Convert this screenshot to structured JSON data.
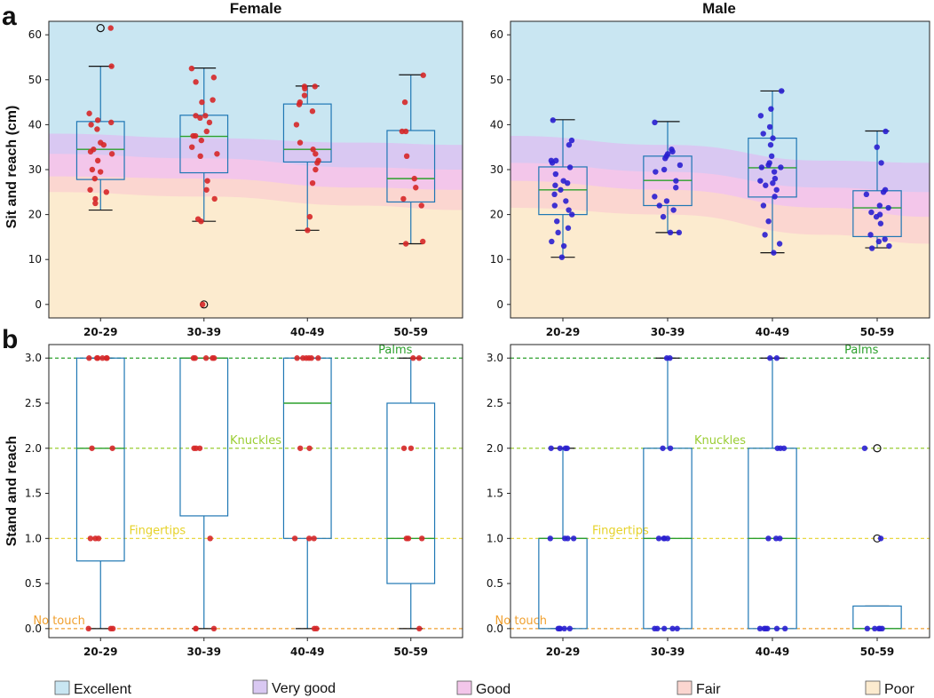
{
  "figure": {
    "panel_a_letter": "a",
    "panel_b_letter": "b",
    "col_titles": [
      "Female",
      "Male"
    ],
    "ylabel_a": "Sit and reach (cm)",
    "ylabel_b": "Stand and reach"
  },
  "colors": {
    "Excellent": "#c9e6f2",
    "Very good": "#d9c8f2",
    "Good": "#f3c6ea",
    "Fair": "#fbd6d0",
    "Poor": "#fcebcf",
    "box": "#1f77b4",
    "median": "#2ca02c",
    "female_points": "#d62728",
    "male_points": "#2a1fd0",
    "palms_line": "#2ca02c",
    "knuckles_line": "#9acd32",
    "fingertips_line": "#e6d22a",
    "notouch_line": "#f0a030"
  },
  "legend": [
    "Excellent",
    "Very good",
    "Good",
    "Fair",
    "Poor"
  ],
  "chart_data": [
    {
      "id": "a-female",
      "type": "box",
      "title": "Female",
      "ylabel": "Sit and reach (cm)",
      "ylim": [
        -3,
        63
      ],
      "yticks": [
        0,
        10,
        20,
        30,
        40,
        50,
        60
      ],
      "categories": [
        "20-29",
        "30-39",
        "40-49",
        "50-59"
      ],
      "boxes": [
        {
          "whislo": 21,
          "q1": 27.8,
          "med": 34.5,
          "q3": 40.7,
          "whishi": 53,
          "fliers": [
            61.5
          ]
        },
        {
          "whislo": 18.5,
          "q1": 29.3,
          "med": 37.4,
          "q3": 42.1,
          "whishi": 52.6,
          "fliers": [
            0
          ]
        },
        {
          "whislo": 16.5,
          "q1": 31.7,
          "med": 34.5,
          "q3": 44.6,
          "whishi": 48.6,
          "fliers": []
        },
        {
          "whislo": 13.5,
          "q1": 22.8,
          "med": 28,
          "q3": 38.7,
          "whishi": 51.1,
          "fliers": []
        }
      ],
      "points": [
        [
          61.5,
          53,
          42.5,
          41,
          40.5,
          40,
          39,
          36,
          35.5,
          34.5,
          34,
          33.5,
          32,
          30,
          29.5,
          28,
          25.5,
          25,
          23.5,
          22.5
        ],
        [
          52.5,
          50.5,
          49.5,
          45.5,
          45,
          42,
          42,
          41.5,
          40.5,
          38.5,
          37.5,
          37.5,
          36.5,
          35,
          33.5,
          33,
          27.5,
          25.5,
          23.5,
          19,
          18.5,
          0
        ],
        [
          48.5,
          48.5,
          48,
          46.5,
          45,
          44.5,
          43,
          40,
          36,
          34.5,
          33.5,
          32,
          31.5,
          30,
          27,
          19.5,
          16.5
        ],
        [
          51,
          45,
          38.5,
          38.5,
          33,
          28,
          26,
          23.5,
          22,
          14,
          13.5
        ]
      ],
      "zones": [
        {
          "x": [
            0.5,
            2.0,
            3.5,
            4.5
          ],
          "poor": [
            25,
            24,
            22,
            21
          ],
          "fair": [
            28.5,
            28,
            26,
            25.5
          ],
          "good": [
            33.5,
            32.5,
            30.5,
            30
          ],
          "verygood": [
            38,
            37,
            36,
            35.5
          ]
        }
      ]
    },
    {
      "id": "a-male",
      "type": "box",
      "title": "Male",
      "ylabel": "",
      "ylim": [
        -3,
        63
      ],
      "yticks": [
        0,
        10,
        20,
        30,
        40,
        50,
        60
      ],
      "categories": [
        "20-29",
        "30-39",
        "40-49",
        "50-59"
      ],
      "boxes": [
        {
          "whislo": 10.5,
          "q1": 20,
          "med": 25.5,
          "q3": 30.6,
          "whishi": 41.1,
          "fliers": []
        },
        {
          "whislo": 16,
          "q1": 22,
          "med": 27.6,
          "q3": 33,
          "whishi": 40.7,
          "fliers": []
        },
        {
          "whislo": 11.5,
          "q1": 23.9,
          "med": 30.4,
          "q3": 37,
          "whishi": 47.5,
          "fliers": []
        },
        {
          "whislo": 12.6,
          "q1": 15.1,
          "med": 21.5,
          "q3": 25.3,
          "whishi": 38.6,
          "fliers": []
        }
      ],
      "points": [
        [
          41,
          36.5,
          35.5,
          32,
          32,
          31.5,
          30.5,
          29,
          27.5,
          27,
          26.5,
          25.5,
          24.5,
          23,
          22,
          21,
          20,
          18.5,
          17,
          16,
          14,
          13,
          10.5
        ],
        [
          40.5,
          34.5,
          34,
          33.5,
          33,
          32.5,
          31,
          30,
          29.5,
          27.5,
          26,
          24,
          23,
          22,
          21,
          19.5,
          16,
          16
        ],
        [
          47.5,
          43.5,
          42,
          39.5,
          38,
          37,
          35.5,
          33,
          31.5,
          31,
          30.5,
          30.5,
          29.5,
          28,
          27.5,
          27,
          26.5,
          25.5,
          24,
          22,
          18.5,
          15.5,
          13.5,
          11.5
        ],
        [
          38.5,
          35,
          31.5,
          25.5,
          25,
          24.5,
          22,
          21.5,
          20.5,
          20,
          19.5,
          18,
          15.5,
          14.5,
          14,
          13,
          12.5
        ]
      ],
      "zones": [
        {
          "x": [
            0.5,
            2.0,
            3.5,
            4.5
          ],
          "poor": [
            21.5,
            20,
            15.5,
            13.5
          ],
          "fair": [
            27.5,
            25.5,
            21.5,
            19.5
          ],
          "good": [
            31.5,
            29.5,
            26,
            25
          ],
          "verygood": [
            37.5,
            35.5,
            32,
            31.5
          ]
        }
      ]
    },
    {
      "id": "b-female",
      "type": "box",
      "title": "",
      "ylabel": "Stand and reach",
      "ylim": [
        -0.1,
        3.15
      ],
      "yticks": [
        0.0,
        0.5,
        1.0,
        1.5,
        2.0,
        2.5,
        3.0
      ],
      "ytick_labels": [
        "0.0",
        "0.5",
        "1.0",
        "1.5",
        "2.0",
        "2.5",
        "3.0"
      ],
      "categories": [
        "20-29",
        "30-39",
        "40-49",
        "50-59"
      ],
      "boxes": [
        {
          "whislo": 0,
          "q1": 0.75,
          "med": 2.0,
          "q3": 3.0,
          "whishi": 3.0,
          "fliers": []
        },
        {
          "whislo": 0,
          "q1": 1.25,
          "med": 3.0,
          "q3": 3.0,
          "whishi": 3.0,
          "fliers": []
        },
        {
          "whislo": 0,
          "q1": 1.0,
          "med": 2.5,
          "q3": 3.0,
          "whishi": 3.0,
          "fliers": []
        },
        {
          "whislo": 0,
          "q1": 0.5,
          "med": 1.0,
          "q3": 2.5,
          "whishi": 3.0,
          "fliers": []
        }
      ],
      "points": [
        [
          3,
          3,
          3,
          3,
          3,
          3,
          2,
          2,
          1,
          1,
          1,
          0,
          0,
          0
        ],
        [
          3,
          3,
          3,
          3,
          3,
          2,
          2,
          2,
          1,
          0,
          0,
          0
        ],
        [
          3,
          3,
          3,
          3,
          3,
          3,
          2,
          2,
          1,
          1,
          1,
          0,
          0
        ],
        [
          3,
          3,
          2,
          2,
          1,
          1,
          1,
          0
        ]
      ],
      "reference_lines": [
        {
          "y": 3.0,
          "label": "Palms",
          "label_x": 3.85
        },
        {
          "y": 2.0,
          "label": "Knuckles",
          "label_x": 2.5
        },
        {
          "y": 1.0,
          "label": "Fingertips",
          "label_x": 1.55
        },
        {
          "y": 0.0,
          "label": "No touch",
          "label_x": 0.6
        }
      ]
    },
    {
      "id": "b-male",
      "type": "box",
      "title": "",
      "ylabel": "",
      "ylim": [
        -0.1,
        3.15
      ],
      "yticks": [
        0.0,
        0.5,
        1.0,
        1.5,
        2.0,
        2.5,
        3.0
      ],
      "ytick_labels": [
        "0.0",
        "0.5",
        "1.0",
        "1.5",
        "2.0",
        "2.5",
        "3.0"
      ],
      "categories": [
        "20-29",
        "30-39",
        "40-49",
        "50-59"
      ],
      "boxes": [
        {
          "whislo": 0,
          "q1": 0.0,
          "med": 1.0,
          "q3": 1.0,
          "whishi": 2.0,
          "fliers": []
        },
        {
          "whislo": 0,
          "q1": 0.0,
          "med": 1.0,
          "q3": 2.0,
          "whishi": 3.0,
          "fliers": []
        },
        {
          "whislo": 0,
          "q1": 0.0,
          "med": 1.0,
          "q3": 2.0,
          "whishi": 3.0,
          "fliers": []
        },
        {
          "whislo": 0,
          "q1": 0.0,
          "med": 0.0,
          "q3": 0.25,
          "whishi": 0.25,
          "fliers": [
            1.0,
            2.0
          ]
        }
      ],
      "points": [
        [
          2,
          2,
          2,
          2,
          1,
          1,
          1,
          1,
          0,
          0,
          0,
          0,
          0
        ],
        [
          3,
          3,
          2,
          2,
          1,
          1,
          1,
          1,
          0,
          0,
          0,
          0,
          0
        ],
        [
          3,
          3,
          2,
          2,
          2,
          1,
          1,
          1,
          0,
          0,
          0,
          0,
          0,
          0
        ],
        [
          2,
          1,
          0,
          0,
          0,
          0,
          0
        ]
      ],
      "reference_lines": [
        {
          "y": 3.0,
          "label": "Palms",
          "label_x": 3.85
        },
        {
          "y": 2.0,
          "label": "Knuckles",
          "label_x": 2.5
        },
        {
          "y": 1.0,
          "label": "Fingertips",
          "label_x": 1.55
        },
        {
          "y": 0.0,
          "label": "No touch",
          "label_x": 0.6
        }
      ]
    }
  ]
}
